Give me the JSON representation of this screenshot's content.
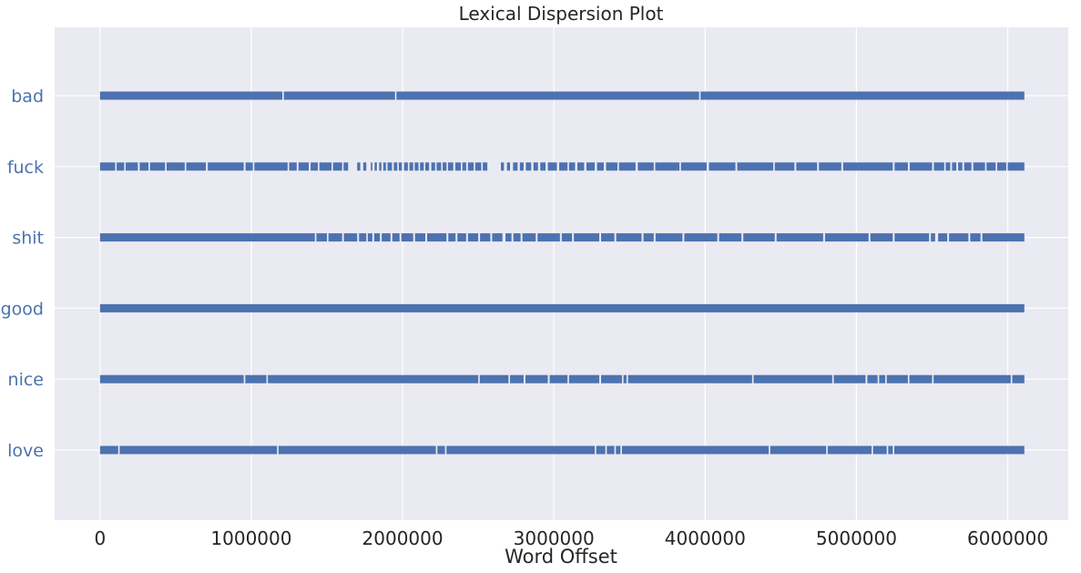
{
  "chart_data": {
    "type": "scatter",
    "title": "Lexical Dispersion Plot",
    "xlabel": "Word Offset",
    "ylabel": "",
    "xlim": [
      -300000,
      6400000
    ],
    "xticks": [
      0,
      1000000,
      2000000,
      3000000,
      4000000,
      5000000,
      6000000
    ],
    "xtick_labels": [
      "0",
      "1000000",
      "2000000",
      "3000000",
      "4000000",
      "5000000",
      "6000000"
    ],
    "categories": [
      "bad",
      "fuck",
      "shit",
      "good",
      "nice",
      "love"
    ],
    "offset_range": [
      0,
      6110000
    ],
    "series": [
      {
        "word": "bad",
        "gaps": [
          [
            1205000,
            1215000
          ],
          [
            1950000,
            1958000
          ],
          [
            3960000,
            3966000
          ]
        ]
      },
      {
        "word": "fuck",
        "gaps": [
          [
            100000,
            110000
          ],
          [
            160000,
            168000
          ],
          [
            250000,
            262000
          ],
          [
            320000,
            330000
          ],
          [
            430000,
            440000
          ],
          [
            560000,
            570000
          ],
          [
            700000,
            712000
          ],
          [
            950000,
            962000
          ],
          [
            1010000,
            1020000
          ],
          [
            1240000,
            1250000
          ],
          [
            1300000,
            1312000
          ],
          [
            1380000,
            1392000
          ],
          [
            1440000,
            1450000
          ],
          [
            1530000,
            1540000
          ],
          [
            1600000,
            1610000
          ],
          [
            1640000,
            1700000
          ],
          [
            1720000,
            1740000
          ],
          [
            1760000,
            1790000
          ],
          [
            1800000,
            1815000
          ],
          [
            1830000,
            1845000
          ],
          [
            1860000,
            1872000
          ],
          [
            1890000,
            1900000
          ],
          [
            1930000,
            1942000
          ],
          [
            1965000,
            1975000
          ],
          [
            1995000,
            2010000
          ],
          [
            2035000,
            2045000
          ],
          [
            2070000,
            2080000
          ],
          [
            2105000,
            2115000
          ],
          [
            2140000,
            2150000
          ],
          [
            2175000,
            2190000
          ],
          [
            2215000,
            2225000
          ],
          [
            2255000,
            2265000
          ],
          [
            2290000,
            2300000
          ],
          [
            2335000,
            2348000
          ],
          [
            2385000,
            2395000
          ],
          [
            2420000,
            2432000
          ],
          [
            2470000,
            2480000
          ],
          [
            2520000,
            2530000
          ],
          [
            2560000,
            2650000
          ],
          [
            2670000,
            2690000
          ],
          [
            2710000,
            2730000
          ],
          [
            2760000,
            2775000
          ],
          [
            2800000,
            2815000
          ],
          [
            2850000,
            2865000
          ],
          [
            2895000,
            2910000
          ],
          [
            2945000,
            2960000
          ],
          [
            3020000,
            3035000
          ],
          [
            3090000,
            3100000
          ],
          [
            3140000,
            3155000
          ],
          [
            3200000,
            3215000
          ],
          [
            3270000,
            3285000
          ],
          [
            3330000,
            3345000
          ],
          [
            3420000,
            3430000
          ],
          [
            3540000,
            3555000
          ],
          [
            3660000,
            3670000
          ],
          [
            3830000,
            3840000
          ],
          [
            4010000,
            4025000
          ],
          [
            4200000,
            4212000
          ],
          [
            4450000,
            4460000
          ],
          [
            4590000,
            4602000
          ],
          [
            4740000,
            4752000
          ],
          [
            4900000,
            4912000
          ],
          [
            5240000,
            5252000
          ],
          [
            5340000,
            5352000
          ],
          [
            5500000,
            5512000
          ],
          [
            5580000,
            5590000
          ],
          [
            5620000,
            5632000
          ],
          [
            5660000,
            5672000
          ],
          [
            5700000,
            5712000
          ],
          [
            5760000,
            5772000
          ],
          [
            5850000,
            5860000
          ],
          [
            5920000,
            5930000
          ],
          [
            5990000,
            6000000
          ]
        ]
      },
      {
        "word": "shit",
        "gaps": [
          [
            1420000,
            1430000
          ],
          [
            1500000,
            1510000
          ],
          [
            1600000,
            1612000
          ],
          [
            1700000,
            1712000
          ],
          [
            1760000,
            1770000
          ],
          [
            1800000,
            1812000
          ],
          [
            1850000,
            1862000
          ],
          [
            1920000,
            1932000
          ],
          [
            1980000,
            1992000
          ],
          [
            2070000,
            2082000
          ],
          [
            2150000,
            2162000
          ],
          [
            2290000,
            2302000
          ],
          [
            2350000,
            2362000
          ],
          [
            2420000,
            2432000
          ],
          [
            2500000,
            2512000
          ],
          [
            2580000,
            2592000
          ],
          [
            2660000,
            2680000
          ],
          [
            2720000,
            2732000
          ],
          [
            2780000,
            2792000
          ],
          [
            2880000,
            2892000
          ],
          [
            3040000,
            3052000
          ],
          [
            3120000,
            3132000
          ],
          [
            3300000,
            3312000
          ],
          [
            3400000,
            3412000
          ],
          [
            3580000,
            3592000
          ],
          [
            3660000,
            3672000
          ],
          [
            3850000,
            3862000
          ],
          [
            4080000,
            4092000
          ],
          [
            4240000,
            4252000
          ],
          [
            4460000,
            4472000
          ],
          [
            4780000,
            4792000
          ],
          [
            5080000,
            5092000
          ],
          [
            5240000,
            5252000
          ],
          [
            5480000,
            5492000
          ],
          [
            5520000,
            5540000
          ],
          [
            5600000,
            5612000
          ],
          [
            5740000,
            5752000
          ],
          [
            5820000,
            5832000
          ]
        ]
      },
      {
        "word": "good",
        "gaps": []
      },
      {
        "word": "nice",
        "gaps": [
          [
            950000,
            960000
          ],
          [
            1100000,
            1108000
          ],
          [
            2500000,
            2510000
          ],
          [
            2700000,
            2710000
          ],
          [
            2800000,
            2812000
          ],
          [
            2960000,
            2972000
          ],
          [
            3090000,
            3100000
          ],
          [
            3300000,
            3312000
          ],
          [
            3450000,
            3460000
          ],
          [
            3480000,
            3490000
          ],
          [
            4310000,
            4320000
          ],
          [
            4840000,
            4850000
          ],
          [
            5060000,
            5072000
          ],
          [
            5140000,
            5150000
          ],
          [
            5190000,
            5200000
          ],
          [
            5340000,
            5350000
          ],
          [
            5500000,
            5510000
          ],
          [
            6020000,
            6030000
          ]
        ]
      },
      {
        "word": "love",
        "gaps": [
          [
            120000,
            130000
          ],
          [
            1170000,
            1180000
          ],
          [
            2220000,
            2230000
          ],
          [
            2280000,
            2290000
          ],
          [
            3270000,
            3280000
          ],
          [
            3340000,
            3350000
          ],
          [
            3400000,
            3410000
          ],
          [
            3440000,
            3450000
          ],
          [
            4420000,
            4430000
          ],
          [
            4800000,
            4810000
          ],
          [
            5100000,
            5110000
          ],
          [
            5200000,
            5210000
          ],
          [
            5240000,
            5250000
          ]
        ]
      }
    ],
    "grid": true,
    "legend": "none",
    "colors": {
      "background": "#eaeaf2",
      "grid": "#ffffff",
      "marks": "#4c72b0",
      "ytick_labels": "#4c72b0",
      "text": "#262626"
    }
  }
}
